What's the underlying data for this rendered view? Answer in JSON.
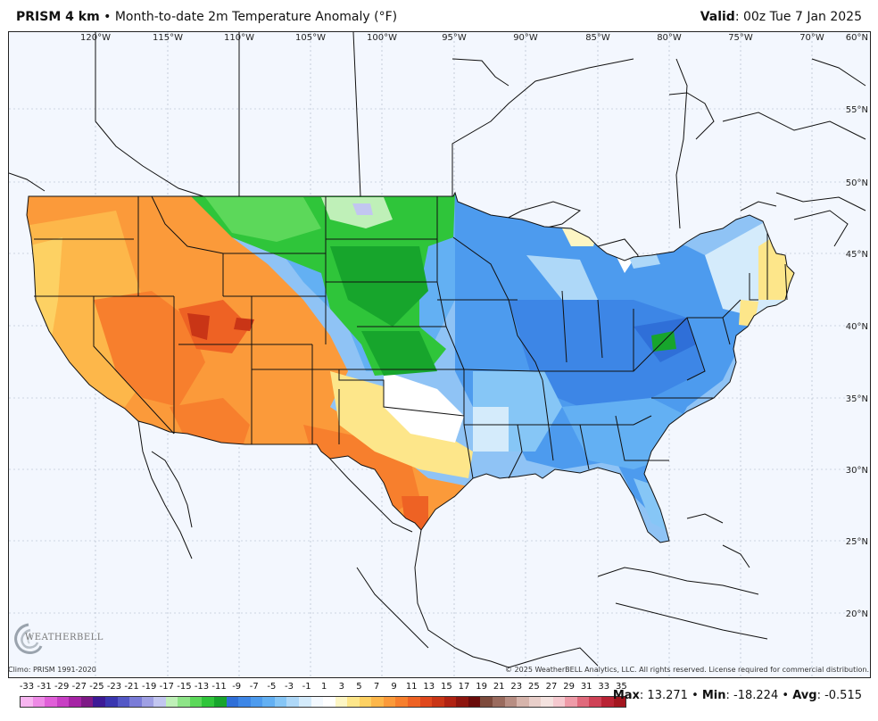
{
  "header": {
    "model": "PRISM 4 km",
    "separator": "•",
    "title": "Month-to-date 2m Temperature Anomaly (°F)",
    "valid_label": "Valid",
    "valid_time": ": 00z Tue 7 Jan 2025"
  },
  "map": {
    "longitude_labels": [
      "120°W",
      "115°W",
      "110°W",
      "105°W",
      "100°W",
      "95°W",
      "90°W",
      "85°W",
      "80°W",
      "75°W",
      "70°W",
      "60°N"
    ],
    "latitude_labels": [
      "55°N",
      "50°N",
      "45°N",
      "40°N",
      "35°N",
      "30°N",
      "25°N",
      "20°N"
    ]
  },
  "logo": {
    "text": "WEATHERBELL",
    "subtext": "Analytics LLC"
  },
  "credits": {
    "climo": "Climo: PRISM 1991-2020",
    "copyright": "© 2025 WeatherBELL Analytics, LLC. All rights reserved. License required for commercial distribution."
  },
  "legend": {
    "tick_labels": [
      "-33",
      "-31",
      "-29",
      "-27",
      "-25",
      "-23",
      "-21",
      "-19",
      "-17",
      "-15",
      "-13",
      "-11",
      "-9",
      "-7",
      "-5",
      "-3",
      "-1",
      "1",
      "3",
      "5",
      "7",
      "9",
      "11",
      "13",
      "15",
      "17",
      "19",
      "21",
      "23",
      "25",
      "27",
      "29",
      "31",
      "33",
      "35"
    ],
    "colors": [
      "#f7b5f0",
      "#ee8ae6",
      "#e05fd8",
      "#c83fc4",
      "#a624a5",
      "#7e1a86",
      "#3d1a96",
      "#3a36b0",
      "#5458c6",
      "#7a7cd8",
      "#9fa0e4",
      "#c2c6f0",
      "#bff0b8",
      "#8ee488",
      "#5cd85a",
      "#2fc53a",
      "#17a52c",
      "#2f6fd8",
      "#3d86e6",
      "#4d9bee",
      "#63b0f3",
      "#86c6f6",
      "#aed8f8",
      "#d4ebfb",
      "#f3f9ff",
      "#ffffff",
      "#fdf6c4",
      "#fde68a",
      "#fdd163",
      "#fdb74a",
      "#fb9a3a",
      "#f77f2d",
      "#ee6224",
      "#e0481d",
      "#c93516",
      "#b02212",
      "#8d150e",
      "#6a0b0a",
      "#7d4a3c",
      "#9a6b5e",
      "#b88e83",
      "#d6b4ab",
      "#e9cfca",
      "#f4e2df",
      "#f5c9cf",
      "#ee9ba8",
      "#e06a7c",
      "#cf4256",
      "#b92334",
      "#a3161f"
    ]
  },
  "stats": {
    "max_label": "Max",
    "max_value": ": 13.271",
    "min_label": "Min",
    "min_value": ": -18.224",
    "avg_label": "Avg",
    "avg_value": ": -0.515",
    "separator": "•"
  }
}
